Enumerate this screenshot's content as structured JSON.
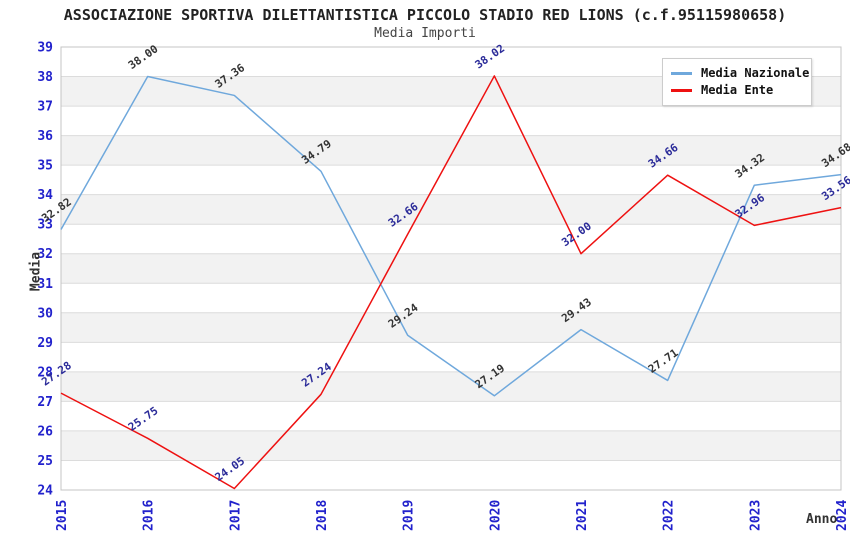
{
  "title": "ASSOCIAZIONE SPORTIVA DILETTANTISTICA PICCOLO STADIO RED LIONS (c.f.95115980658)",
  "subtitle": "Media Importi",
  "chart_data": {
    "type": "line",
    "x": [
      "2015",
      "2016",
      "2017",
      "2018",
      "2019",
      "2020",
      "2021",
      "2022",
      "2023",
      "2024"
    ],
    "xlabel": "Anno",
    "ylabel": "Media",
    "ylim": [
      24,
      39
    ],
    "ytick_step": 1,
    "grid": true,
    "banded_background": true,
    "legend_position": "top-right",
    "series": [
      {
        "name": "Media Nazionale",
        "color": "#6fa8dc",
        "label_color": "#333333",
        "values": [
          32.82,
          38.0,
          37.36,
          34.79,
          29.24,
          27.19,
          29.43,
          27.71,
          34.32,
          34.68
        ]
      },
      {
        "name": "Media Ente",
        "color": "#ee1111",
        "label_color": "#2b2b99",
        "values": [
          27.28,
          25.75,
          24.05,
          27.24,
          32.66,
          38.02,
          32.0,
          34.66,
          32.96,
          33.56
        ]
      }
    ]
  },
  "colors": {
    "tick_label": "#2222cc",
    "axis_title": "#333333",
    "grid_line": "#dcdcdc",
    "band_fill": "#f2f2f2",
    "spine": "#c4c4c4",
    "title_color": "#222222",
    "subtitle_color": "#444444",
    "background": "#ffffff"
  }
}
